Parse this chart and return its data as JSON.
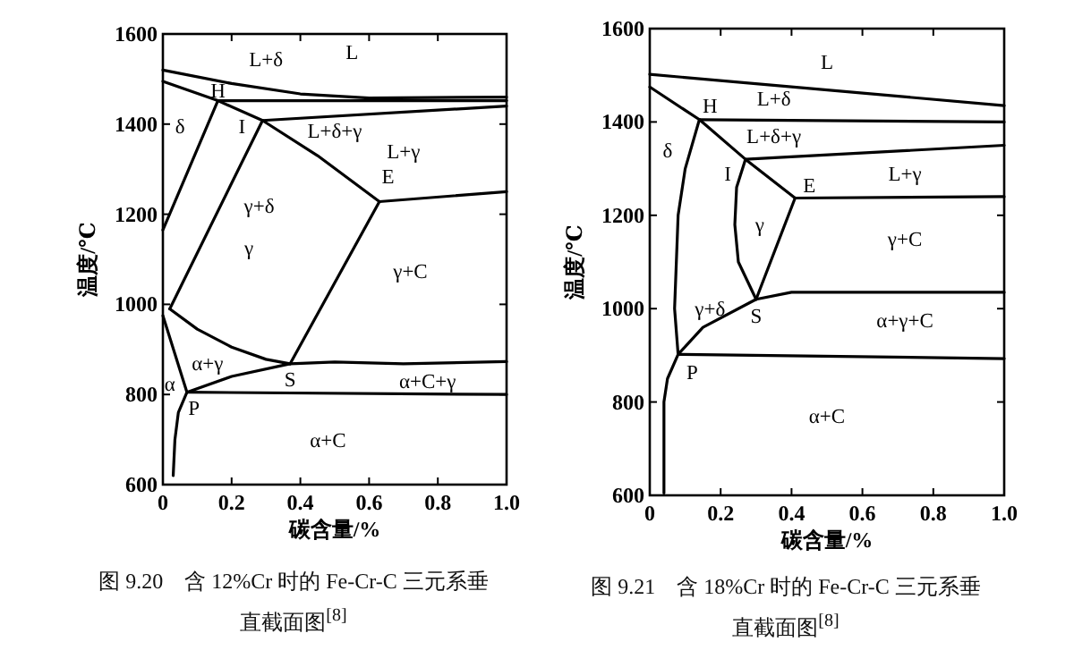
{
  "chart_data": [
    {
      "type": "line",
      "title": "图 9.20　含 12%Cr 时的 Fe-Cr-C 三元系垂直截面图$^{[8]}$",
      "xlabel": "碳含量/%",
      "ylabel": "温度/℃",
      "xlim": [
        0,
        1.0
      ],
      "ylim": [
        600,
        1600
      ],
      "xticks": [
        0,
        0.2,
        0.4,
        0.6,
        0.8,
        {
          "value": 1.0,
          "label": "1.0"
        }
      ],
      "yticks": [
        600,
        800,
        1000,
        1200,
        1400,
        1600
      ],
      "grid": false,
      "series": [
        {
          "color": "#000000",
          "x": [
            0,
            0.2,
            0.4,
            0.6,
            1.0
          ],
          "values": [
            1520,
            1490,
            1467,
            1458,
            1460
          ]
        },
        {
          "color": "#000000",
          "x": [
            0,
            0.16,
            0.29,
            0.45,
            0.63
          ],
          "values": [
            1495,
            1452,
            1408,
            1330,
            1228
          ]
        },
        {
          "color": "#000000",
          "x": [
            0.16,
            1.0
          ],
          "values": [
            1452,
            1452
          ]
        },
        {
          "color": "#000000",
          "x": [
            0.29,
            1.0
          ],
          "values": [
            1408,
            1440
          ]
        },
        {
          "color": "#000000",
          "x": [
            0.63,
            1.0
          ],
          "values": [
            1228,
            1250
          ]
        },
        {
          "color": "#000000",
          "x": [
            0,
            0.16
          ],
          "values": [
            1165,
            1452
          ]
        },
        {
          "color": "#000000",
          "x": [
            0.02,
            0.29
          ],
          "values": [
            990,
            1408
          ]
        },
        {
          "color": "#000000",
          "x": [
            0.37,
            0.63
          ],
          "values": [
            868,
            1228
          ]
        },
        {
          "color": "#000000",
          "x": [
            0.02,
            0.1,
            0.2,
            0.3,
            0.37
          ],
          "values": [
            990,
            945,
            905,
            878,
            868
          ]
        },
        {
          "color": "#000000",
          "x": [
            0,
            0.07
          ],
          "values": [
            975,
            805
          ]
        },
        {
          "color": "#000000",
          "x": [
            0.07,
            0.2,
            0.37,
            0.5,
            0.7,
            1.0
          ],
          "values": [
            805,
            840,
            868,
            872,
            868,
            873
          ]
        },
        {
          "color": "#000000",
          "x": [
            0.07,
            1.0
          ],
          "values": [
            805,
            800
          ]
        },
        {
          "color": "#000000",
          "x": [
            0.07,
            0.045,
            0.035,
            0.03
          ],
          "values": [
            805,
            760,
            700,
            620
          ]
        }
      ],
      "annotations": [
        "L",
        "L+δ",
        "L+δ+γ",
        "L+γ",
        "δ",
        "γ+δ",
        "γ",
        "γ+C",
        "α+γ",
        "α",
        "α+C+γ",
        "α+C",
        "H",
        "I",
        "E",
        "S",
        "P"
      ]
    },
    {
      "type": "line",
      "title": "图 9.21　含 18%Cr 时的 Fe-Cr-C 三元系垂直截面图$^{[8]}$",
      "xlabel": "碳含量/%",
      "ylabel": "温度/℃",
      "xlim": [
        0,
        1.0
      ],
      "ylim": [
        600,
        1600
      ],
      "xticks": [
        0,
        0.2,
        0.4,
        0.6,
        0.8,
        {
          "value": 1.0,
          "label": "1.0"
        }
      ],
      "yticks": [
        600,
        800,
        1000,
        1200,
        1400,
        1600
      ],
      "grid": false,
      "series": [
        {
          "color": "#000000",
          "x": [
            0,
            1.0
          ],
          "values": [
            1502,
            1435
          ]
        },
        {
          "color": "#000000",
          "x": [
            0,
            0.14,
            0.27,
            0.41
          ],
          "values": [
            1475,
            1405,
            1320,
            1237
          ]
        },
        {
          "color": "#000000",
          "x": [
            0.14,
            1.0
          ],
          "values": [
            1405,
            1400
          ]
        },
        {
          "color": "#000000",
          "x": [
            0.27,
            1.0
          ],
          "values": [
            1320,
            1350
          ]
        },
        {
          "color": "#000000",
          "x": [
            0.41,
            1.0
          ],
          "values": [
            1237,
            1240
          ]
        },
        {
          "color": "#000000",
          "x": [
            0.14,
            0.1,
            0.08,
            0.07,
            0.08,
            0.05,
            0.04,
            0.04
          ],
          "values": [
            1405,
            1300,
            1200,
            1000,
            902,
            850,
            800,
            605
          ]
        },
        {
          "color": "#000000",
          "x": [
            0.27,
            0.245,
            0.24,
            0.25,
            0.3
          ],
          "values": [
            1320,
            1260,
            1180,
            1100,
            1020
          ]
        },
        {
          "color": "#000000",
          "x": [
            0.3,
            0.41
          ],
          "values": [
            1020,
            1237
          ]
        },
        {
          "color": "#000000",
          "x": [
            0.08,
            0.15,
            0.3,
            0.4,
            1.0
          ],
          "values": [
            902,
            960,
            1020,
            1035,
            1035
          ]
        },
        {
          "color": "#000000",
          "x": [
            0.08,
            1.0
          ],
          "values": [
            902,
            893
          ]
        }
      ],
      "annotations": [
        "L",
        "L+δ",
        "L+δ+γ",
        "L+γ",
        "δ",
        "γ",
        "γ+C",
        "γ+δ",
        "α+γ+C",
        "α+C",
        "H",
        "I",
        "E",
        "S",
        "P"
      ]
    }
  ]
}
